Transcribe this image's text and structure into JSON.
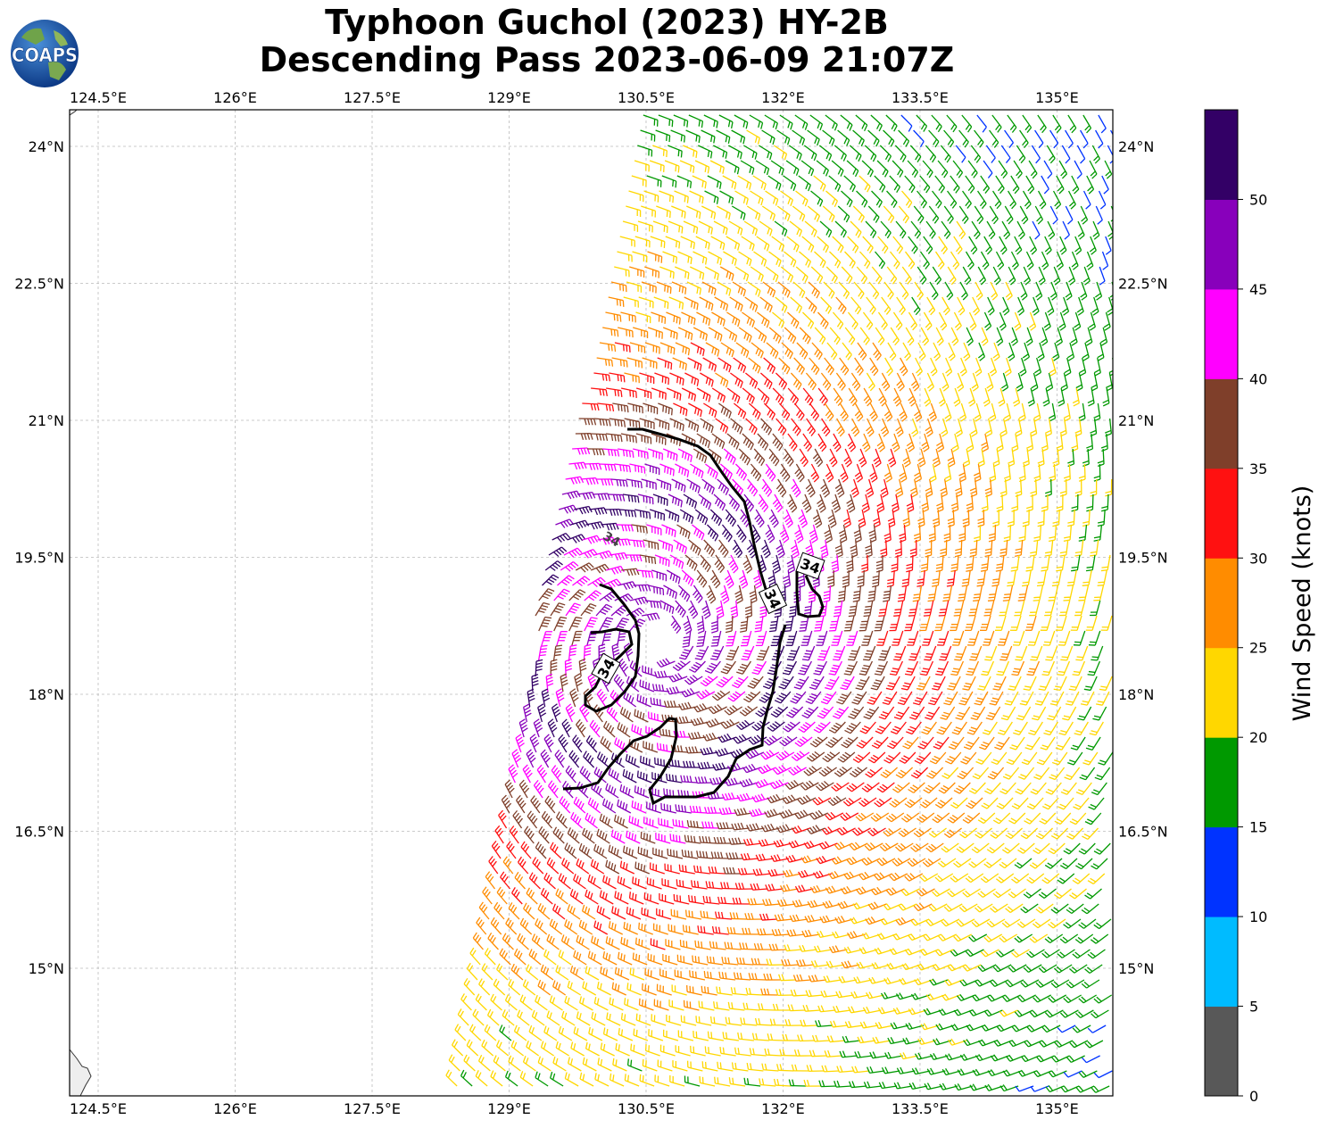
{
  "title": {
    "line1": "Typhoon Guchol (2023) HY-2B",
    "line2": "Descending Pass 2023-06-09 21:07Z"
  },
  "logo": {
    "text": "COAPS",
    "icon": "globe-logo-icon"
  },
  "map": {
    "lon_range": [
      124.2,
      135.6
    ],
    "lat_range": [
      13.5,
      24.3
    ],
    "lon_ticks": [
      "124.5°E",
      "126°E",
      "127.5°E",
      "129°E",
      "130.5°E",
      "132°E",
      "133.5°E",
      "135°E"
    ],
    "lon_tick_values": [
      124.5,
      126,
      127.5,
      129,
      130.5,
      132,
      133.5,
      135
    ],
    "lat_ticks": [
      "24°N",
      "22.5°N",
      "21°N",
      "19.5°N",
      "18°N",
      "16.5°N",
      "15°N"
    ],
    "lat_tick_values": [
      24,
      22.5,
      21,
      19.5,
      18,
      16.5,
      15
    ],
    "gridlines": true,
    "wind_barbs": "HY-2B scatterometer wind barbs colored by wind speed, storm circulation centered near 130.6°E 18.5°N",
    "contour_labels": [
      "34",
      "34",
      "34",
      "34"
    ],
    "contour_level": "34 kt"
  },
  "colorbar": {
    "title": "Wind Speed (knots)",
    "ticks": [
      "0",
      "5",
      "10",
      "15",
      "20",
      "25",
      "30",
      "35",
      "40",
      "45",
      "50"
    ],
    "colors": [
      "#585858",
      "#00bbff",
      "#0033ff",
      "#009900",
      "#ffd700",
      "#ff8c00",
      "#ff1111",
      "#7f3f2a",
      "#ff00ff",
      "#8800bb",
      "#330066"
    ]
  }
}
